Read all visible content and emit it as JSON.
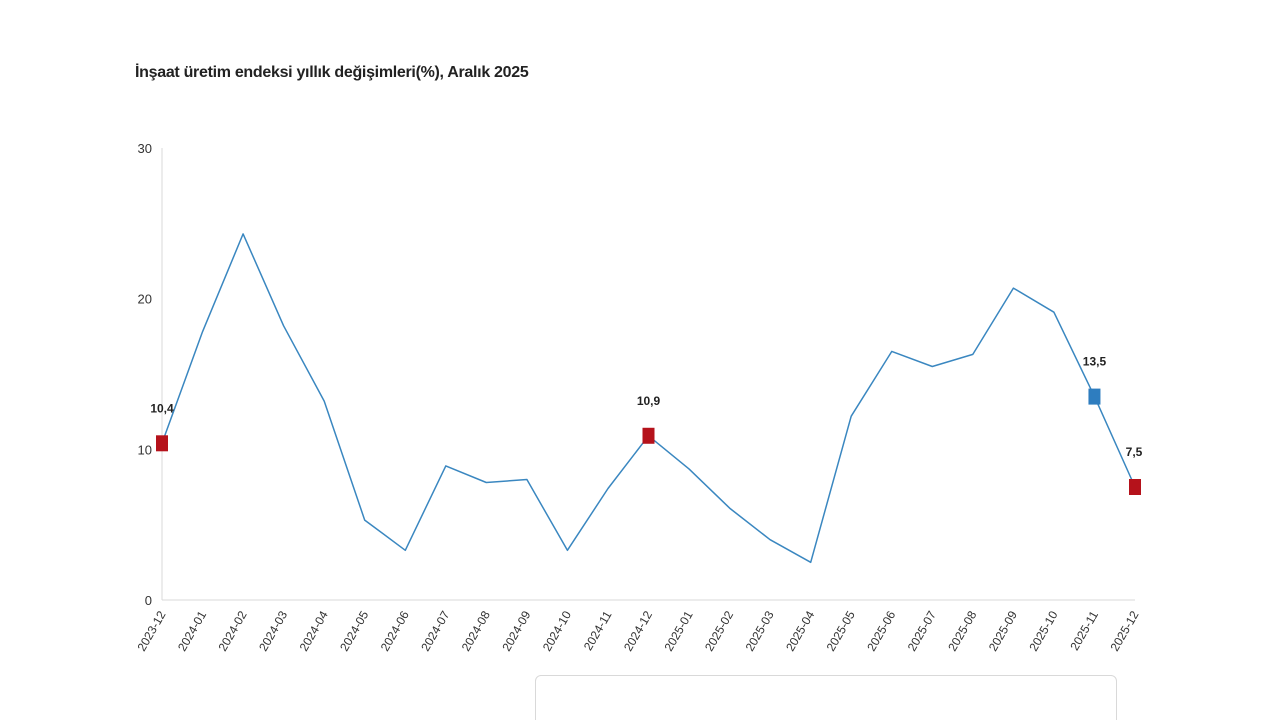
{
  "title": "İnşaat üretim endeksi yıllık değişimleri(%), Aralık 2025",
  "colors": {
    "line": "#3a87c0",
    "highlight_red": "#b5121b",
    "highlight_blue": "#2e7dbf",
    "axis_text": "#333333",
    "axis_line": "#d9d9d9"
  },
  "chart_data": {
    "type": "line",
    "title": "İnşaat üretim endeksi yıllık değişimleri(%), Aralık 2025",
    "xlabel": "",
    "ylabel": "",
    "ylim": [
      0,
      30
    ],
    "yticks": [
      "0",
      "10",
      "20",
      "30"
    ],
    "grid": false,
    "categories": [
      "2023-12",
      "2024-01",
      "2024-02",
      "2024-03",
      "2024-04",
      "2024-05",
      "2024-06",
      "2024-07",
      "2024-08",
      "2024-09",
      "2024-10",
      "2024-11",
      "2024-12",
      "2025-01",
      "2025-02",
      "2025-03",
      "2025-04",
      "2025-05",
      "2025-06",
      "2025-07",
      "2025-08",
      "2025-09",
      "2025-10",
      "2025-11",
      "2025-12"
    ],
    "series": [
      {
        "values": [
          10.4,
          17.8,
          24.3,
          18.2,
          13.2,
          5.3,
          3.3,
          8.9,
          7.8,
          8.0,
          3.3,
          7.4,
          10.9,
          8.7,
          6.1,
          4.0,
          2.5,
          12.2,
          16.5,
          15.5,
          16.3,
          20.7,
          19.1,
          13.5,
          7.5
        ]
      }
    ],
    "markers": [
      {
        "category": "2023-12",
        "value": 10.4,
        "label": "10,4",
        "color": "#b5121b"
      },
      {
        "category": "2024-12",
        "value": 10.9,
        "label": "10,9",
        "color": "#b5121b"
      },
      {
        "category": "2025-11",
        "value": 13.5,
        "label": "13,5",
        "color": "#2e7dbf"
      },
      {
        "category": "2025-12",
        "value": 7.5,
        "label": "7,5",
        "color": "#b5121b"
      }
    ]
  }
}
